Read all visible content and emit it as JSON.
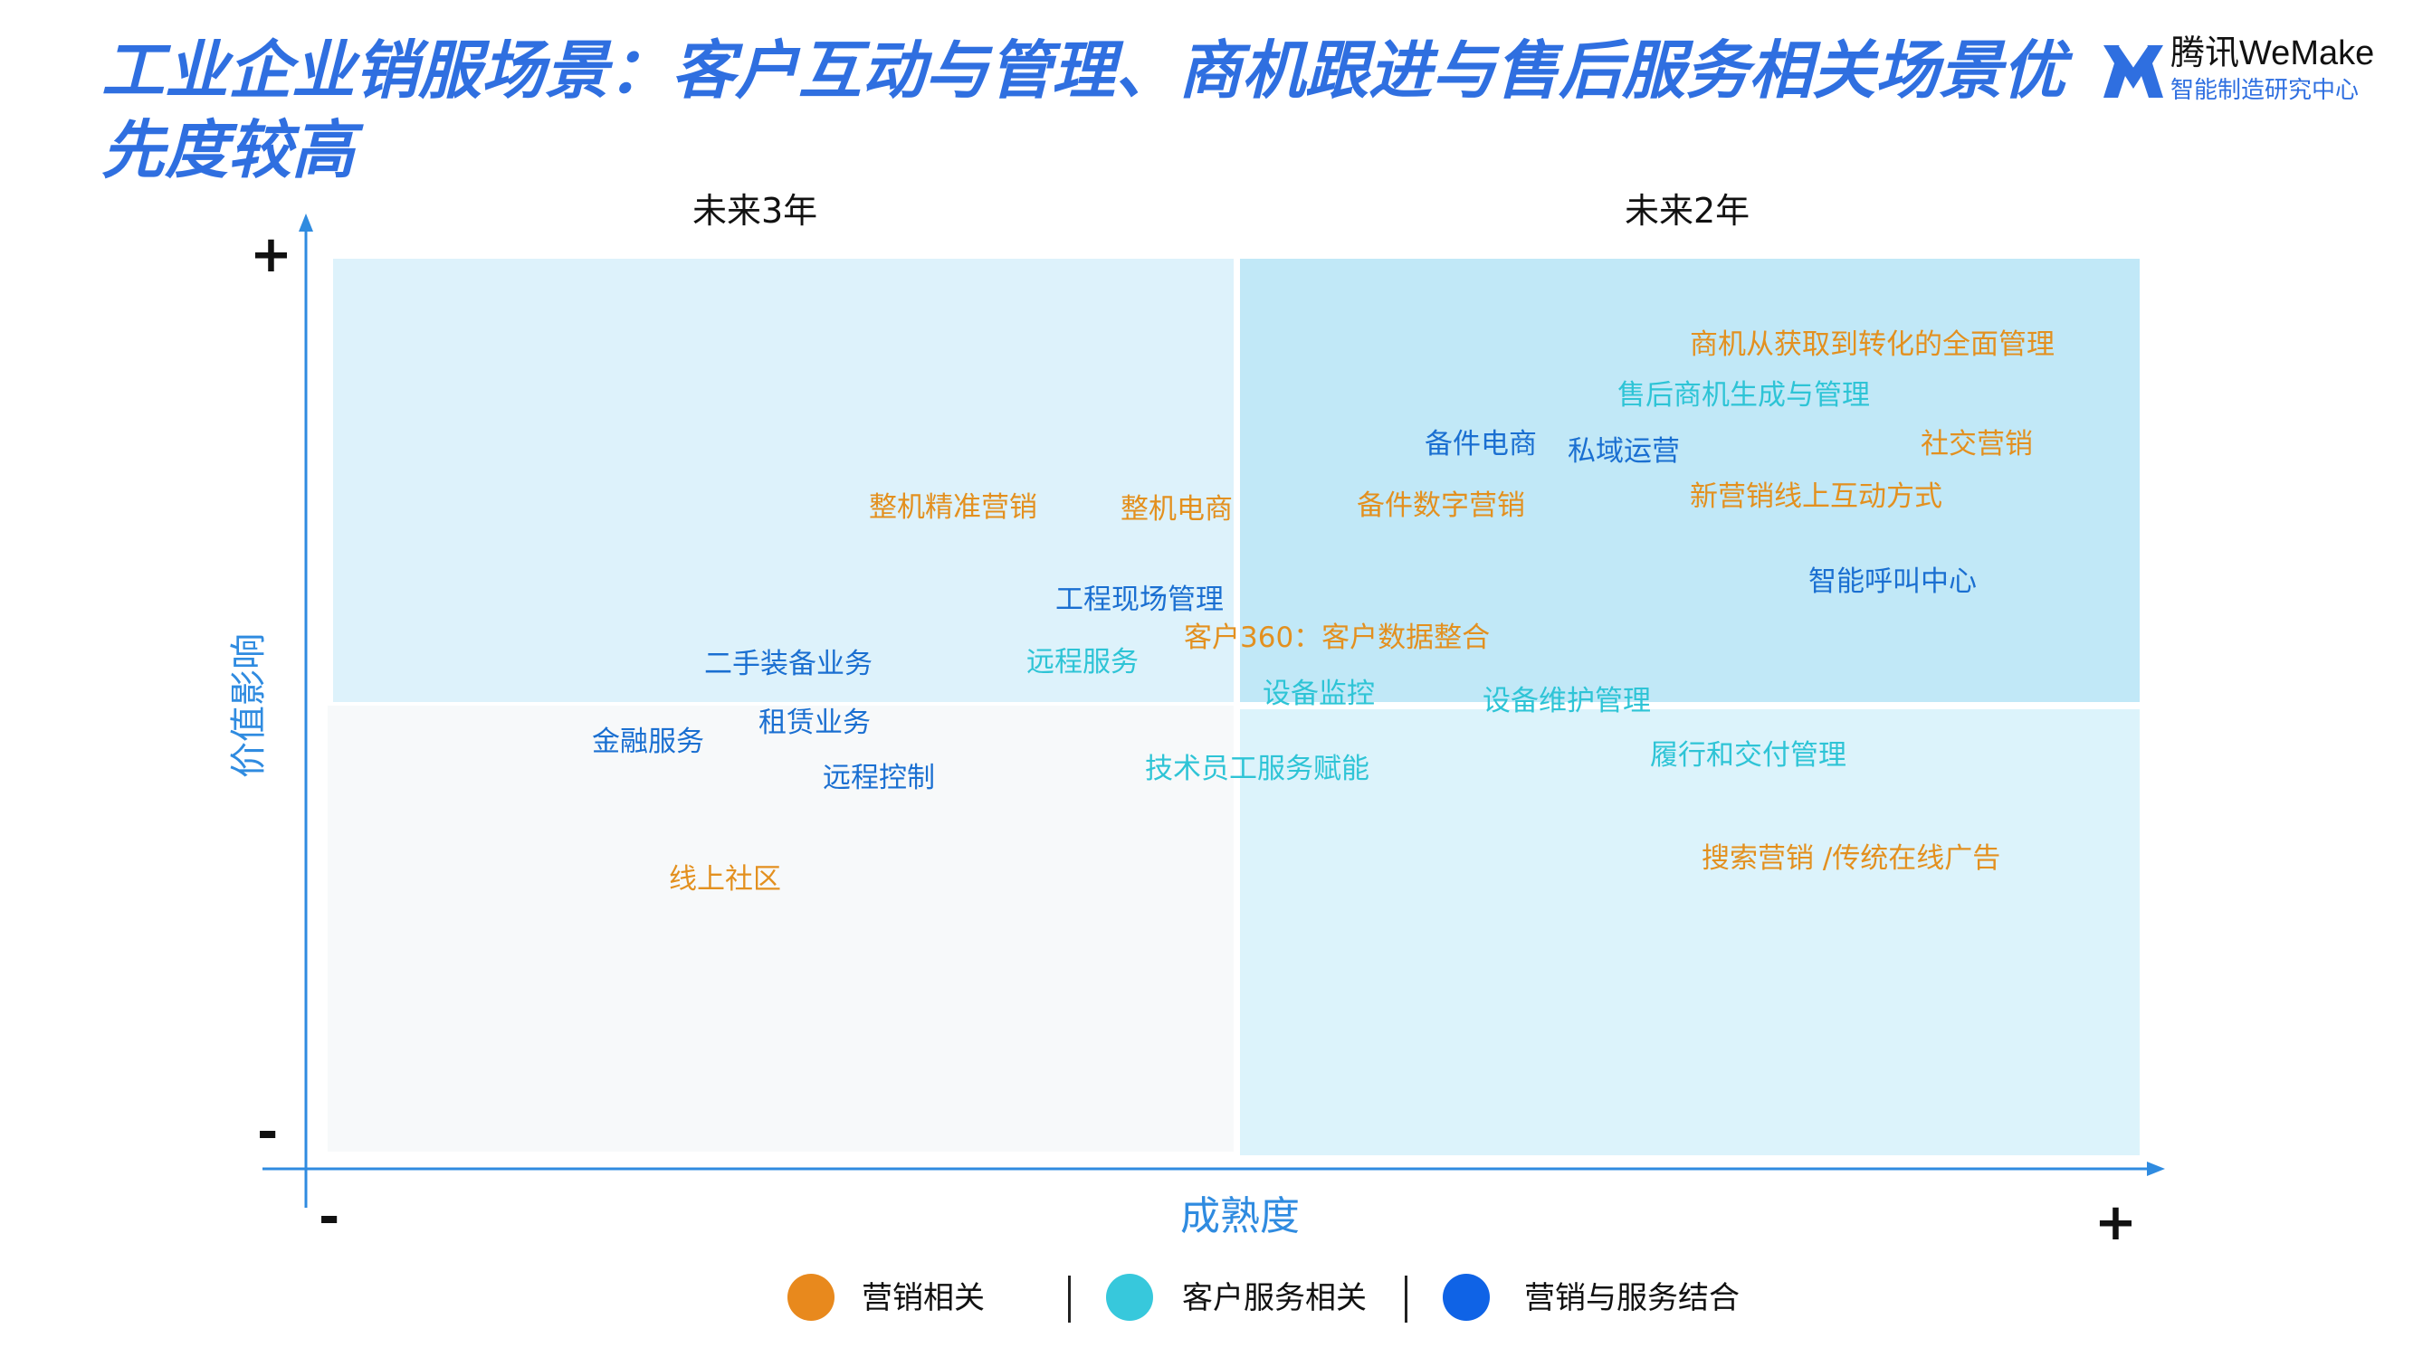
{
  "title": "工业企业销服场景：客户互动与管理、商机跟进与售后服务相关场景优先度较高",
  "logo": {
    "top_text": "腾讯WeMake",
    "bottom_text": "智能制造研究中心",
    "icon": "wemake-logo-icon",
    "color": "#2f6fe0"
  },
  "columns": {
    "left_header": "未来3年",
    "right_header": "未来2年"
  },
  "axes": {
    "y_label": "价值影响",
    "x_label": "成熟度",
    "y_plus": "+",
    "y_minus": "-",
    "x_minus": "-",
    "x_plus": "+"
  },
  "colors": {
    "marketing": "#e3901f",
    "customer_service": "#2ec4d6",
    "combined": "#1a6fd1",
    "accent": "#2f8be0"
  },
  "legend": [
    {
      "label": "营销相关",
      "color": "#e8891d"
    },
    {
      "label": "客户服务相关",
      "color": "#37c8dc"
    },
    {
      "label": "营销与服务结合",
      "color": "#0f63e6"
    }
  ],
  "items": [
    {
      "text": "商机从获取到转化的全面管理",
      "category": "marketing"
    },
    {
      "text": "售后商机生成与管理",
      "category": "customer_service"
    },
    {
      "text": "备件电商",
      "category": "combined"
    },
    {
      "text": "私域运营",
      "category": "combined"
    },
    {
      "text": "社交营销",
      "category": "marketing"
    },
    {
      "text": "整机精准营销",
      "category": "marketing"
    },
    {
      "text": "整机电商",
      "category": "marketing"
    },
    {
      "text": "备件数字营销",
      "category": "marketing"
    },
    {
      "text": "新营销线上互动方式",
      "category": "marketing"
    },
    {
      "text": "智能呼叫中心",
      "category": "combined"
    },
    {
      "text": "工程现场管理",
      "category": "combined"
    },
    {
      "text": "客户360：客户数据整合",
      "category": "marketing"
    },
    {
      "text": "二手装备业务",
      "category": "combined"
    },
    {
      "text": "远程服务",
      "category": "customer_service"
    },
    {
      "text": "设备监控",
      "category": "customer_service"
    },
    {
      "text": "设备维护管理",
      "category": "customer_service"
    },
    {
      "text": "租赁业务",
      "category": "combined"
    },
    {
      "text": "金融服务",
      "category": "combined"
    },
    {
      "text": "远程控制",
      "category": "combined"
    },
    {
      "text": "技术员工服务赋能",
      "category": "customer_service"
    },
    {
      "text": "履行和交付管理",
      "category": "customer_service"
    },
    {
      "text": "线上社区",
      "category": "marketing"
    },
    {
      "text": "搜索营销 /传统在线广告",
      "category": "marketing"
    }
  ]
}
